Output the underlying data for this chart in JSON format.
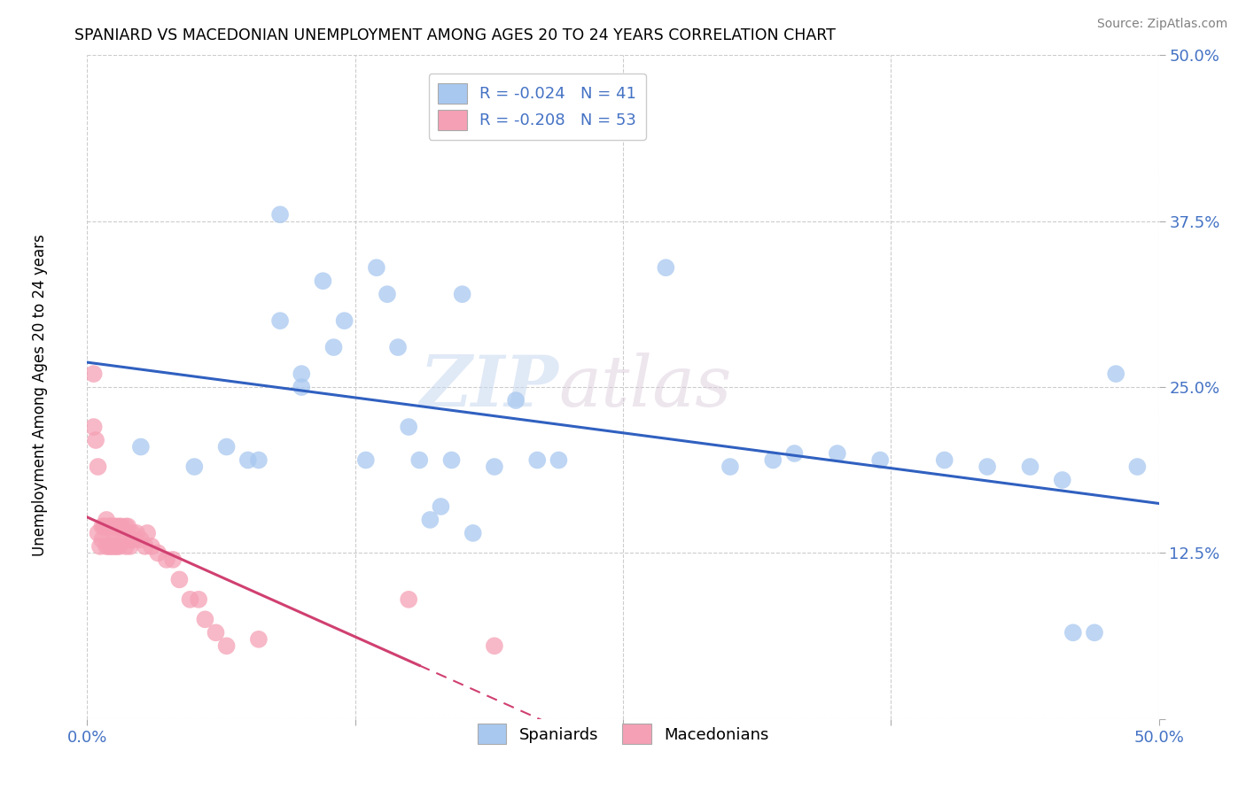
{
  "title": "SPANIARD VS MACEDONIAN UNEMPLOYMENT AMONG AGES 20 TO 24 YEARS CORRELATION CHART",
  "source": "Source: ZipAtlas.com",
  "ylabel": "Unemployment Among Ages 20 to 24 years",
  "xlim": [
    0,
    0.5
  ],
  "ylim": [
    0,
    0.5
  ],
  "xticks": [
    0.0,
    0.125,
    0.25,
    0.375,
    0.5
  ],
  "yticks": [
    0.0,
    0.125,
    0.25,
    0.375,
    0.5
  ],
  "legend_r_blue": "R = -0.024",
  "legend_n_blue": "N = 41",
  "legend_r_pink": "R = -0.208",
  "legend_n_pink": "N = 53",
  "blue_color": "#A8C8F0",
  "pink_color": "#F5A0B5",
  "blue_line_color": "#3060C0",
  "pink_line_color": "#D04070",
  "watermark_zip": "ZIP",
  "watermark_atlas": "atlas",
  "spaniard_x": [
    0.025,
    0.05,
    0.065,
    0.075,
    0.08,
    0.09,
    0.09,
    0.1,
    0.1,
    0.11,
    0.115,
    0.12,
    0.13,
    0.135,
    0.14,
    0.145,
    0.15,
    0.155,
    0.16,
    0.165,
    0.17,
    0.175,
    0.18,
    0.19,
    0.2,
    0.21,
    0.22,
    0.27,
    0.3,
    0.32,
    0.33,
    0.35,
    0.37,
    0.4,
    0.42,
    0.44,
    0.455,
    0.46,
    0.47,
    0.48,
    0.49
  ],
  "spaniard_y": [
    0.205,
    0.19,
    0.205,
    0.195,
    0.195,
    0.38,
    0.3,
    0.26,
    0.25,
    0.33,
    0.28,
    0.3,
    0.195,
    0.34,
    0.32,
    0.28,
    0.22,
    0.195,
    0.15,
    0.16,
    0.195,
    0.32,
    0.14,
    0.19,
    0.24,
    0.195,
    0.195,
    0.34,
    0.19,
    0.195,
    0.2,
    0.2,
    0.195,
    0.195,
    0.19,
    0.19,
    0.18,
    0.065,
    0.065,
    0.26,
    0.19
  ],
  "macedonian_x": [
    0.003,
    0.003,
    0.004,
    0.005,
    0.005,
    0.006,
    0.007,
    0.007,
    0.008,
    0.008,
    0.009,
    0.009,
    0.01,
    0.01,
    0.01,
    0.011,
    0.011,
    0.012,
    0.012,
    0.012,
    0.013,
    0.013,
    0.013,
    0.014,
    0.014,
    0.015,
    0.015,
    0.016,
    0.017,
    0.018,
    0.018,
    0.019,
    0.02,
    0.02,
    0.021,
    0.022,
    0.023,
    0.025,
    0.027,
    0.028,
    0.03,
    0.033,
    0.037,
    0.04,
    0.043,
    0.048,
    0.052,
    0.055,
    0.06,
    0.065,
    0.08,
    0.15,
    0.19
  ],
  "macedonian_y": [
    0.26,
    0.22,
    0.21,
    0.19,
    0.14,
    0.13,
    0.145,
    0.135,
    0.145,
    0.145,
    0.15,
    0.13,
    0.145,
    0.145,
    0.13,
    0.145,
    0.13,
    0.145,
    0.13,
    0.14,
    0.135,
    0.145,
    0.13,
    0.145,
    0.13,
    0.145,
    0.13,
    0.145,
    0.135,
    0.145,
    0.13,
    0.145,
    0.135,
    0.13,
    0.14,
    0.135,
    0.14,
    0.135,
    0.13,
    0.14,
    0.13,
    0.125,
    0.12,
    0.12,
    0.105,
    0.09,
    0.09,
    0.075,
    0.065,
    0.055,
    0.06,
    0.09,
    0.055
  ]
}
